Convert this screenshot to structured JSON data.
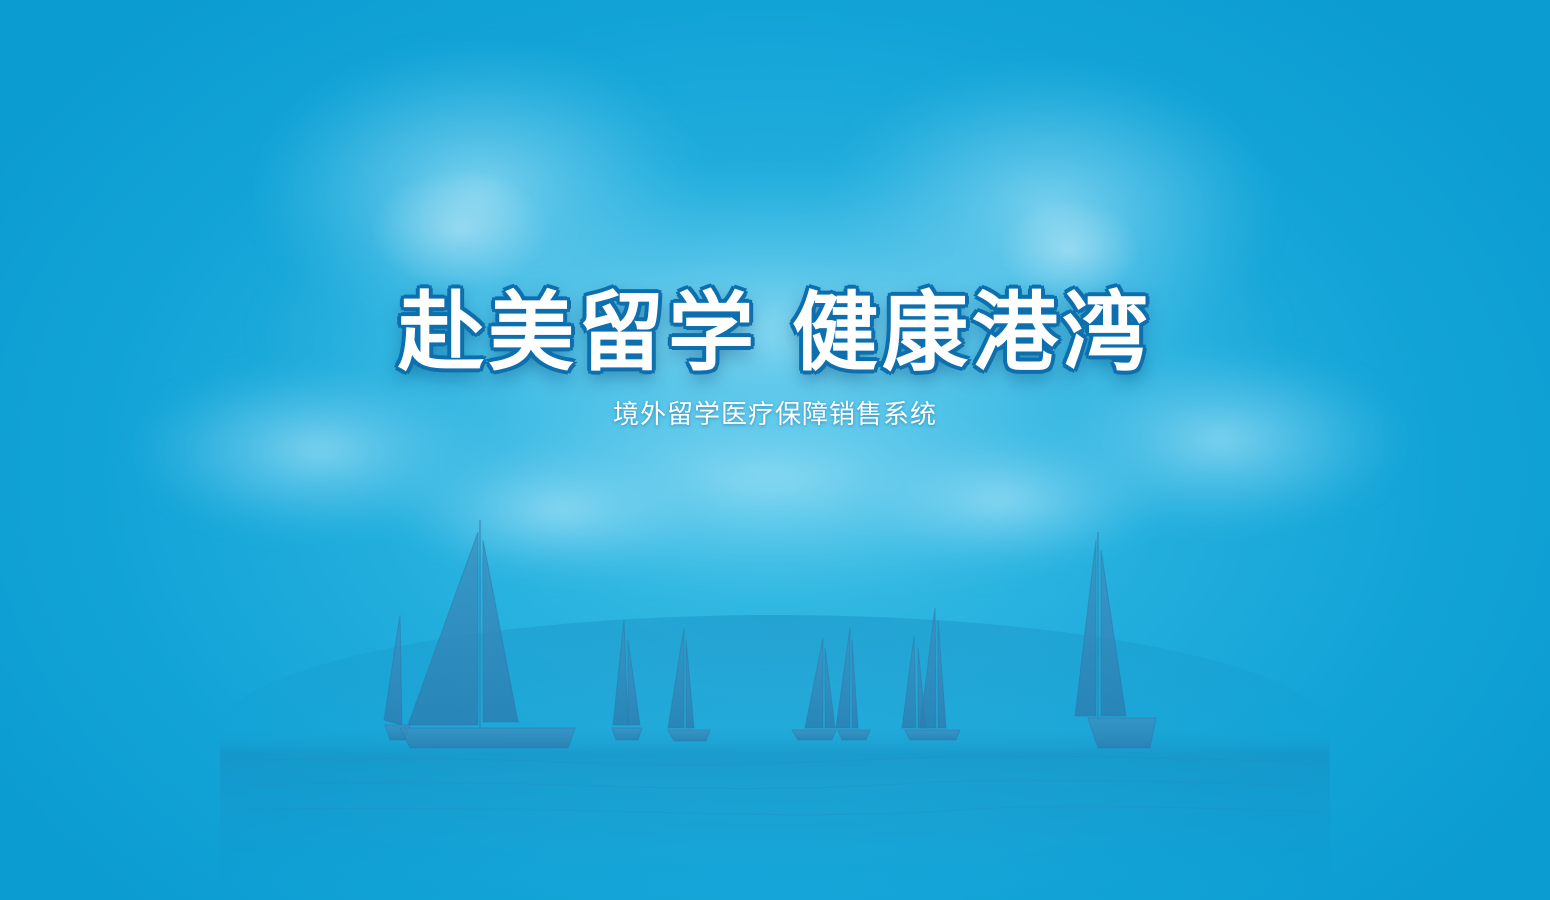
{
  "hero": {
    "headline": "赴美留学 健康港湾",
    "subtitle": "境外留学医疗保障销售系统"
  },
  "colors": {
    "background": "#12a3d6",
    "headline_fill": "#ffffff",
    "headline_outline": "#0d6fae",
    "sail": "#2e86b8",
    "sea": "#0f93c6"
  }
}
